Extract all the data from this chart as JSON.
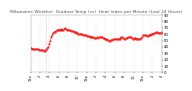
{
  "title": "Milwaukee Weather  Outdoor Temp (vs)  Heat Index per Minute (Last 24 Hours)",
  "title_fontsize": 3.2,
  "title_color": "#555555",
  "bg_color": "#ffffff",
  "line_color": "#ff0000",
  "line_style": "--",
  "line_width": 0.5,
  "marker": ".",
  "marker_size": 0.8,
  "ylim": [
    0,
    90
  ],
  "yticks": [
    0,
    10,
    20,
    30,
    40,
    50,
    60,
    70,
    80,
    90
  ],
  "ytick_fontsize": 2.8,
  "xtick_fontsize": 2.5,
  "grid_style": ":",
  "grid_color": "#cccccc",
  "grid_lw": 0.3,
  "vline_x": 16,
  "vline_color": "#aaaaaa",
  "vline_style": ":",
  "vline_lw": 0.5,
  "x_values": [
    0,
    1,
    2,
    3,
    4,
    5,
    6,
    7,
    8,
    9,
    10,
    11,
    12,
    13,
    14,
    15,
    16,
    17,
    18,
    19,
    20,
    21,
    22,
    23,
    24,
    25,
    26,
    27,
    28,
    29,
    30,
    31,
    32,
    33,
    34,
    35,
    36,
    37,
    38,
    39,
    40,
    41,
    42,
    43,
    44,
    45,
    46,
    47,
    48,
    49,
    50,
    51,
    52,
    53,
    54,
    55,
    56,
    57,
    58,
    59,
    60,
    61,
    62,
    63,
    64,
    65,
    66,
    67,
    68,
    69,
    70,
    71,
    72,
    73,
    74,
    75,
    76,
    77,
    78,
    79,
    80,
    81,
    82,
    83,
    84,
    85,
    86,
    87,
    88,
    89,
    90,
    91,
    92,
    93,
    94,
    95,
    96,
    97,
    98,
    99,
    100,
    101,
    102,
    103,
    104,
    105,
    106,
    107,
    108,
    109,
    110,
    111,
    112,
    113,
    114,
    115,
    116,
    117,
    118,
    119,
    120,
    121,
    122,
    123,
    124,
    125,
    126,
    127,
    128,
    129,
    130,
    131,
    132,
    133,
    134,
    135,
    136,
    137,
    138,
    139,
    140
  ],
  "y_values": [
    38,
    38,
    37,
    37,
    37,
    36,
    36,
    36,
    36,
    35,
    35,
    35,
    35,
    35,
    34,
    34,
    35,
    36,
    38,
    40,
    44,
    50,
    55,
    59,
    62,
    63,
    64,
    65,
    66,
    67,
    67,
    66,
    68,
    67,
    67,
    67,
    68,
    69,
    68,
    67,
    67,
    66,
    66,
    65,
    65,
    65,
    64,
    64,
    63,
    62,
    62,
    61,
    61,
    61,
    60,
    60,
    59,
    59,
    58,
    58,
    57,
    57,
    57,
    56,
    56,
    56,
    55,
    55,
    54,
    54,
    54,
    55,
    54,
    55,
    55,
    56,
    55,
    54,
    54,
    53,
    53,
    52,
    51,
    51,
    50,
    50,
    51,
    51,
    52,
    52,
    52,
    53,
    53,
    52,
    52,
    53,
    54,
    55,
    55,
    54,
    53,
    53,
    54,
    54,
    55,
    56,
    56,
    55,
    54,
    53,
    53,
    54,
    54,
    53,
    53,
    52,
    52,
    53,
    54,
    56,
    58,
    59,
    59,
    58,
    57,
    57,
    58,
    59,
    59,
    60,
    61,
    61,
    62,
    62,
    63,
    63,
    62,
    62,
    62,
    62,
    63
  ],
  "xtick_positions": [
    0,
    10,
    20,
    30,
    40,
    50,
    60,
    70,
    80,
    90,
    100,
    110,
    120,
    130,
    140
  ],
  "xtick_labels": [
    "12a",
    "2",
    "4",
    "6",
    "8",
    "10",
    "12p",
    "2",
    "4",
    "6",
    "8",
    "10",
    "12a",
    "2",
    "4"
  ]
}
